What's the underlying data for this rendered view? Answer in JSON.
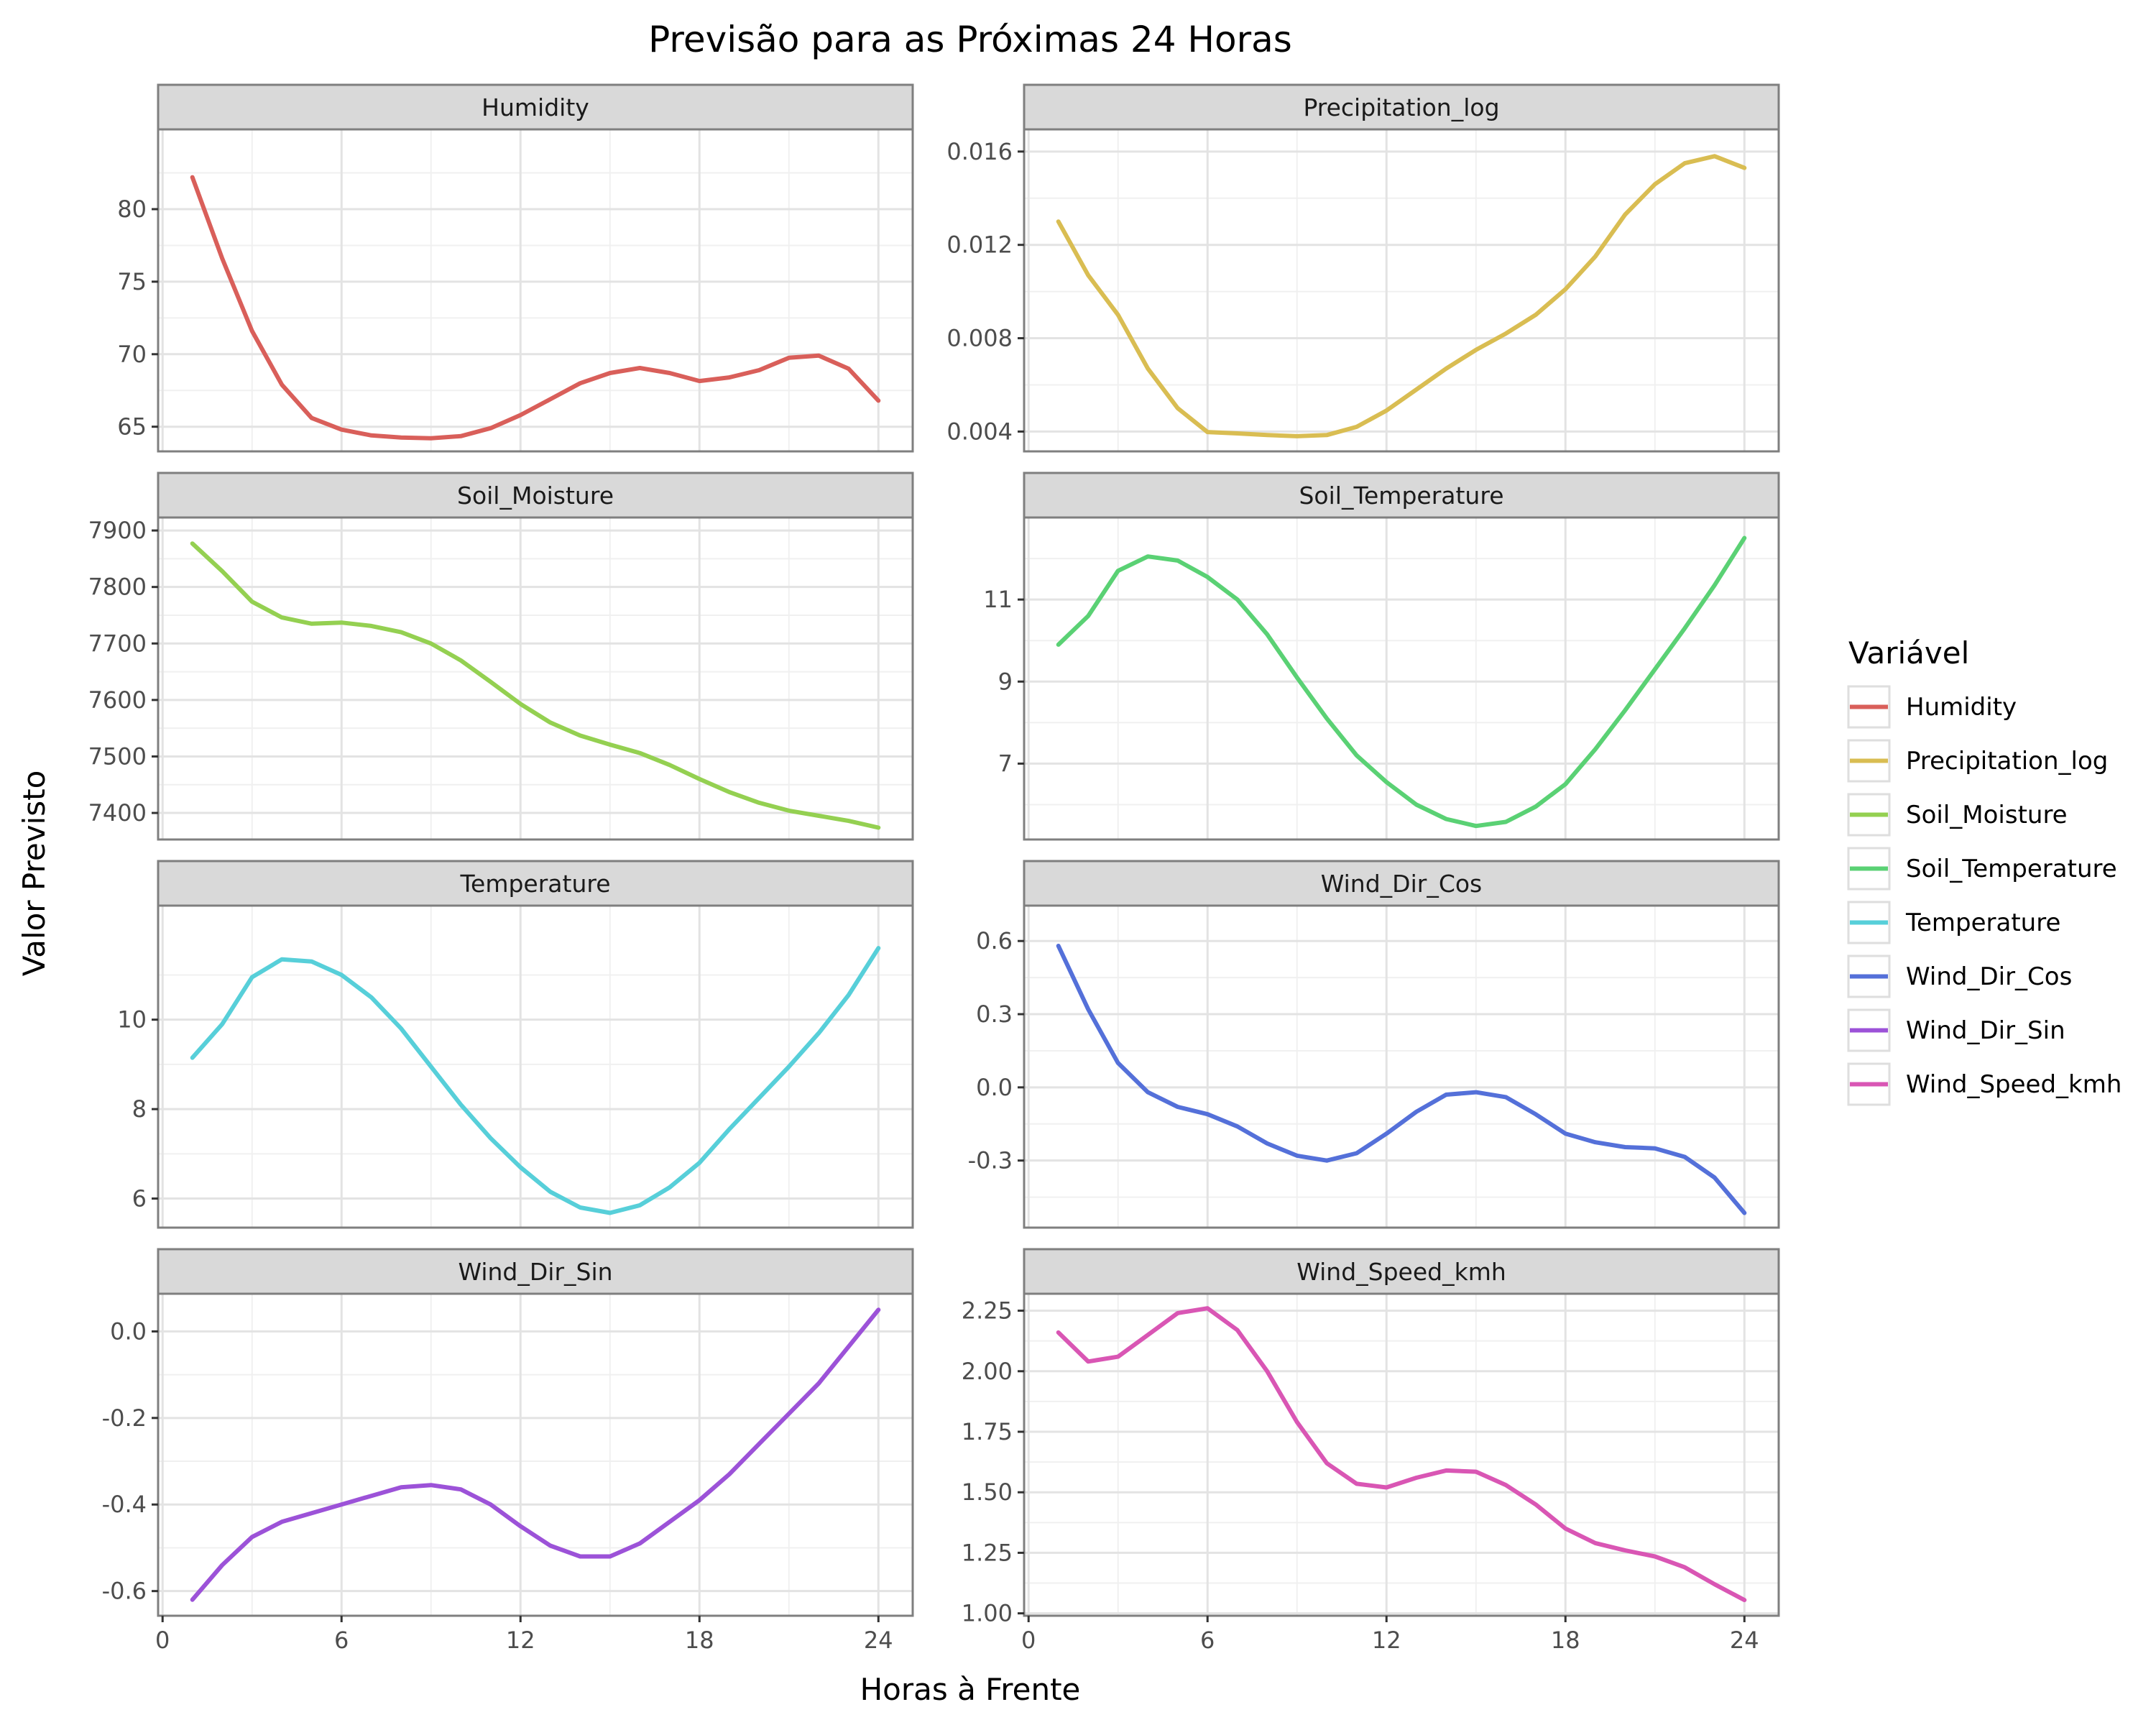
{
  "chart_data": {
    "type": "line",
    "title": "Previsão para as Próximas 24 Horas",
    "xlabel": "Horas à Frente",
    "ylabel": "Valor Previsto",
    "legend_title": "Variável",
    "legend_position": "right",
    "grid": true,
    "x": [
      1,
      2,
      3,
      4,
      5,
      6,
      7,
      8,
      9,
      10,
      11,
      12,
      13,
      14,
      15,
      16,
      17,
      18,
      19,
      20,
      21,
      22,
      23,
      24
    ],
    "xticks": [
      "0",
      "6",
      "12",
      "18",
      "24"
    ],
    "xtick_values": [
      0,
      6,
      12,
      18,
      24
    ],
    "xlim": [
      -0.15,
      25.15
    ],
    "panels": [
      {
        "name": "Humidity",
        "color": "#d95f5a",
        "ylim": [
          63.3,
          85.5
        ],
        "yticks": [
          65,
          70,
          75,
          80
        ],
        "ytick_labels": [
          "65",
          "70",
          "75",
          "80"
        ],
        "values": [
          82.2,
          76.6,
          71.6,
          67.9,
          65.6,
          64.8,
          64.4,
          64.25,
          64.2,
          64.35,
          64.9,
          65.8,
          66.9,
          68.0,
          68.7,
          69.05,
          68.7,
          68.15,
          68.4,
          68.9,
          69.75,
          69.9,
          69.0,
          66.8
        ]
      },
      {
        "name": "Precipitation_log",
        "color": "#d9bd52",
        "ylim": [
          0.00315,
          0.01695
        ],
        "yticks": [
          0.004,
          0.008,
          0.012,
          0.016
        ],
        "ytick_labels": [
          "0.004",
          "0.008",
          "0.012",
          "0.016"
        ],
        "values": [
          0.013,
          0.0107,
          0.009,
          0.0067,
          0.005,
          0.00398,
          0.00392,
          0.00385,
          0.0038,
          0.00385,
          0.0042,
          0.0049,
          0.0058,
          0.0067,
          0.0075,
          0.0082,
          0.009,
          0.0101,
          0.0115,
          0.0133,
          0.0146,
          0.0155,
          0.0158,
          0.0153
        ]
      },
      {
        "name": "Soil_Moisture",
        "color": "#94d051",
        "ylim": [
          7353,
          7923
        ],
        "yticks": [
          7400,
          7500,
          7600,
          7700,
          7800,
          7900
        ],
        "ytick_labels": [
          "7400",
          "7500",
          "7600",
          "7700",
          "7800",
          "7900"
        ],
        "values": [
          7877,
          7828,
          7774,
          7746,
          7735,
          7737,
          7731,
          7720,
          7700,
          7670,
          7632,
          7593,
          7560,
          7537,
          7521,
          7506,
          7485,
          7460,
          7437,
          7418,
          7404,
          7395,
          7386,
          7374
        ]
      },
      {
        "name": "Soil_Temperature",
        "color": "#5ad174",
        "ylim": [
          5.15,
          13.0
        ],
        "yticks": [
          7,
          9,
          11
        ],
        "ytick_labels": [
          "7",
          "9",
          "11"
        ],
        "values": [
          9.9,
          10.6,
          11.7,
          12.05,
          11.95,
          11.55,
          11.0,
          10.15,
          9.1,
          8.1,
          7.2,
          6.55,
          6.0,
          5.65,
          5.48,
          5.58,
          5.95,
          6.5,
          7.35,
          8.3,
          9.3,
          10.3,
          11.35,
          12.5
        ]
      },
      {
        "name": "Temperature",
        "color": "#57cfd9",
        "ylim": [
          5.35,
          12.55
        ],
        "yticks": [
          6,
          8,
          10
        ],
        "ytick_labels": [
          "6",
          "8",
          "10"
        ],
        "values": [
          9.15,
          9.9,
          10.95,
          11.35,
          11.3,
          11.0,
          10.5,
          9.8,
          8.95,
          8.1,
          7.35,
          6.7,
          6.15,
          5.8,
          5.68,
          5.85,
          6.25,
          6.8,
          7.55,
          8.25,
          8.95,
          9.7,
          10.55,
          11.6
        ]
      },
      {
        "name": "Wind_Dir_Cos",
        "color": "#5470d9",
        "ylim": [
          -0.575,
          0.745
        ],
        "yticks": [
          -0.3,
          0.0,
          0.3,
          0.6
        ],
        "ytick_labels": [
          "-0.3",
          "0.0",
          "0.3",
          "0.6"
        ],
        "values": [
          0.58,
          0.32,
          0.1,
          -0.02,
          -0.08,
          -0.11,
          -0.16,
          -0.23,
          -0.28,
          -0.3,
          -0.27,
          -0.19,
          -0.1,
          -0.03,
          -0.02,
          -0.04,
          -0.11,
          -0.19,
          -0.225,
          -0.245,
          -0.25,
          -0.285,
          -0.37,
          -0.515
        ]
      },
      {
        "name": "Wind_Dir_Sin",
        "color": "#9c52d8",
        "ylim": [
          -0.657,
          0.087
        ],
        "yticks": [
          -0.6,
          -0.4,
          -0.2,
          0.0
        ],
        "ytick_labels": [
          "-0.6",
          "-0.4",
          "-0.2",
          "0.0"
        ],
        "values": [
          -0.62,
          -0.54,
          -0.475,
          -0.44,
          -0.42,
          -0.4,
          -0.38,
          -0.36,
          -0.355,
          -0.365,
          -0.4,
          -0.45,
          -0.495,
          -0.52,
          -0.52,
          -0.49,
          -0.44,
          -0.39,
          -0.33,
          -0.26,
          -0.19,
          -0.12,
          -0.035,
          0.05
        ]
      },
      {
        "name": "Wind_Speed_kmh",
        "color": "#d956b4",
        "ylim": [
          0.99,
          2.32
        ],
        "yticks": [
          1.0,
          1.25,
          1.5,
          1.75,
          2.0,
          2.25
        ],
        "ytick_labels": [
          "1.00",
          "1.25",
          "1.50",
          "1.75",
          "2.00",
          "2.25"
        ],
        "values": [
          2.16,
          2.04,
          2.06,
          2.15,
          2.24,
          2.26,
          2.17,
          2.0,
          1.79,
          1.62,
          1.535,
          1.52,
          1.56,
          1.59,
          1.585,
          1.53,
          1.45,
          1.35,
          1.29,
          1.26,
          1.235,
          1.19,
          1.12,
          1.055
        ]
      }
    ]
  }
}
